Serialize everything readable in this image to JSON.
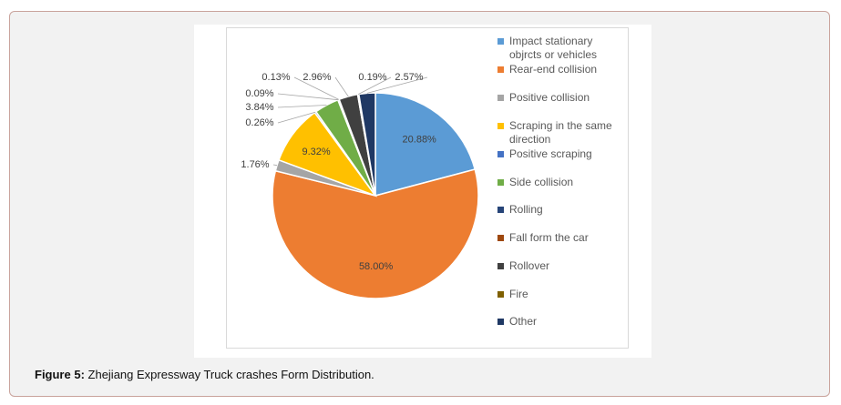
{
  "caption": {
    "label": "Figure 5:",
    "text": " Zhejiang Expressway Truck crashes Form Distribution."
  },
  "chart_data": {
    "type": "pie",
    "title": "",
    "slices": [
      {
        "name": "Impact stationary objrcts or vehicles",
        "value": 20.88,
        "label": "20.88%",
        "color": "#5b9bd5"
      },
      {
        "name": "Rear-end collision",
        "value": 58.0,
        "label": "58.00%",
        "color": "#ed7d31"
      },
      {
        "name": "Positive collision",
        "value": 1.76,
        "label": "1.76%",
        "color": "#a5a5a5"
      },
      {
        "name": "Scraping in the same direction",
        "value": 9.32,
        "label": "9.32%",
        "color": "#ffc000"
      },
      {
        "name": "Positive scraping",
        "value": 0.26,
        "label": "0.26%",
        "color": "#4472c4"
      },
      {
        "name": "Side collision",
        "value": 3.84,
        "label": "3.84%",
        "color": "#70ad47"
      },
      {
        "name": "Rolling",
        "value": 0.09,
        "label": "0.09%",
        "color": "#264478"
      },
      {
        "name": "Fall form the car",
        "value": 0.13,
        "label": "0.13%",
        "color": "#9e480e"
      },
      {
        "name": "Rollover",
        "value": 2.96,
        "label": "2.96%",
        "color": "#404040"
      },
      {
        "name": "Fire",
        "value": 0.19,
        "label": "0.19%",
        "color": "#7f6000"
      },
      {
        "name": "Other",
        "value": 2.57,
        "label": "2.57%",
        "color": "#1f3864"
      }
    ],
    "legend_position": "right"
  }
}
